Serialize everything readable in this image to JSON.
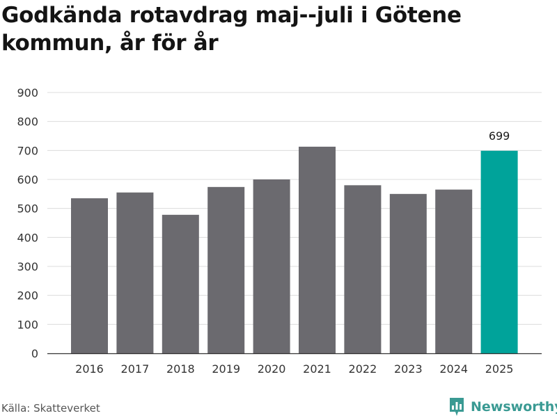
{
  "chart_data": {
    "type": "bar",
    "title": "Godkända rotavdrag maj--juli i Götene kommun, år för år",
    "xlabel": "",
    "ylabel": "",
    "categories": [
      "2016",
      "2017",
      "2018",
      "2019",
      "2020",
      "2021",
      "2022",
      "2023",
      "2024",
      "2025"
    ],
    "values": [
      535,
      555,
      478,
      574,
      600,
      713,
      580,
      550,
      565,
      699
    ],
    "ylim": [
      0,
      900
    ],
    "yticks": [
      "0",
      "100",
      "200",
      "300",
      "400",
      "500",
      "600",
      "700",
      "800",
      "900"
    ],
    "grid": true,
    "bar_color": "#6b6a6f",
    "highlight_color": "#00a39a",
    "highlight_index": 9,
    "data_labels": [
      {
        "index": 9,
        "text": "699"
      }
    ]
  },
  "footer": {
    "source": "Källa: Skatteverket",
    "brand_name": "Newsworthy",
    "brand_icon": "newsworthy-logo-icon",
    "brand_color": "#3a9a93"
  }
}
